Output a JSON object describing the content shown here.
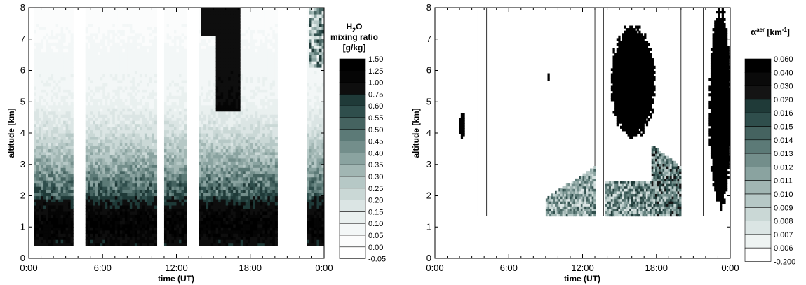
{
  "chart_data": [
    {
      "type": "heatmap",
      "title": "",
      "xlabel": "time (UT)",
      "ylabel": "altitude [km]",
      "x_ticks": [
        "0:00",
        "6:00",
        "12:00",
        "18:00",
        "0:00"
      ],
      "xlim": [
        0,
        24
      ],
      "y_ticks": [
        "0",
        "1",
        "2",
        "3",
        "4",
        "5",
        "6",
        "7",
        "8"
      ],
      "ylim": [
        0,
        8
      ],
      "colorbar": {
        "title_main": "H",
        "title_sub": "2",
        "title_end": "O",
        "title_line2": "mixing ratio",
        "title_line3": "[g/kg]",
        "levels": [
          "1.50",
          "1.25",
          "1.00",
          "0.75",
          "0.60",
          "0.55",
          "0.50",
          "0.45",
          "0.40",
          "0.35",
          "0.30",
          "0.25",
          "0.20",
          "0.15",
          "0.10",
          "0.05",
          "0.00",
          "-0.05"
        ],
        "colors": [
          "#000000",
          "#050505",
          "#0e0e0e",
          "#1f3a38",
          "#2f4e4c",
          "#456360",
          "#5c7a77",
          "#738e8b",
          "#8aa3a0",
          "#a1b6b3",
          "#b6c8c6",
          "#cad8d6",
          "#dbe5e4",
          "#e9f0ef",
          "#f3f7f7",
          "#fbfcfc",
          "#ffffff"
        ]
      },
      "data_segments_hours": [
        [
          0.4,
          3.6
        ],
        [
          4.6,
          10.3
        ],
        [
          11.0,
          12.8
        ],
        [
          13.8,
          20.2
        ],
        [
          22.6,
          24.0
        ]
      ],
      "data_altitude_range_km": [
        0.4,
        8.0
      ],
      "profile_note_altitude_km": [
        0.4,
        1.0,
        1.5,
        2.0,
        3.0,
        4.0,
        5.0,
        6.0,
        7.0,
        8.0
      ],
      "profile_values_gkg": [
        0.9,
        1.3,
        1.0,
        0.55,
        0.35,
        0.2,
        0.1,
        0.08,
        0.05,
        0.03
      ]
    },
    {
      "type": "heatmap",
      "title": "",
      "xlabel": "time (UT)",
      "ylabel": "altitude [km]",
      "x_ticks": [
        "0:00",
        "6:00",
        "12:00",
        "18:00",
        "0:00"
      ],
      "xlim": [
        0,
        24
      ],
      "y_ticks": [
        "0",
        "1",
        "2",
        "3",
        "4",
        "5",
        "6",
        "7",
        "8"
      ],
      "ylim": [
        0,
        8
      ],
      "colorbar": {
        "title_main": "α",
        "title_sup": "aer",
        "title_end": " [km",
        "title_sup2": "-1",
        "title_close": "]",
        "levels": [
          "0.060",
          "0.040",
          "0.030",
          "0.020",
          "0.016",
          "0.015",
          "0.014",
          "0.013",
          "0.012",
          "0.011",
          "0.010",
          "0.009",
          "0.008",
          "0.007",
          "0.006",
          "-0.200"
        ],
        "colors": [
          "#000000",
          "#0a0a0a",
          "#141414",
          "#1f3a38",
          "#2f4e4c",
          "#456360",
          "#5c7a77",
          "#738e8b",
          "#8aa3a0",
          "#a1b6b3",
          "#b6c8c6",
          "#cad8d6",
          "#dbe5e4",
          "#eef3f2",
          "#ffffff"
        ]
      },
      "data_segments_hours": [
        [
          0.0,
          3.5
        ],
        [
          4.2,
          13.0
        ],
        [
          13.7,
          20.0
        ],
        [
          21.8,
          24.0
        ]
      ],
      "data_altitude_range_km": [
        1.35,
        8.0
      ],
      "aerosol_features": [
        {
          "t": [
            1.9,
            2.4
          ],
          "z": [
            3.8,
            4.6
          ],
          "level": "0.060"
        },
        {
          "t": [
            9.0,
            9.3
          ],
          "z": [
            5.6,
            5.9
          ],
          "level": "0.060"
        },
        {
          "t": [
            14.2,
            17.8
          ],
          "z": [
            3.8,
            7.4
          ],
          "level": "0.060"
        },
        {
          "t": [
            22.2,
            24.0
          ],
          "z": [
            1.5,
            8.0
          ],
          "level": "0.060"
        }
      ]
    }
  ]
}
